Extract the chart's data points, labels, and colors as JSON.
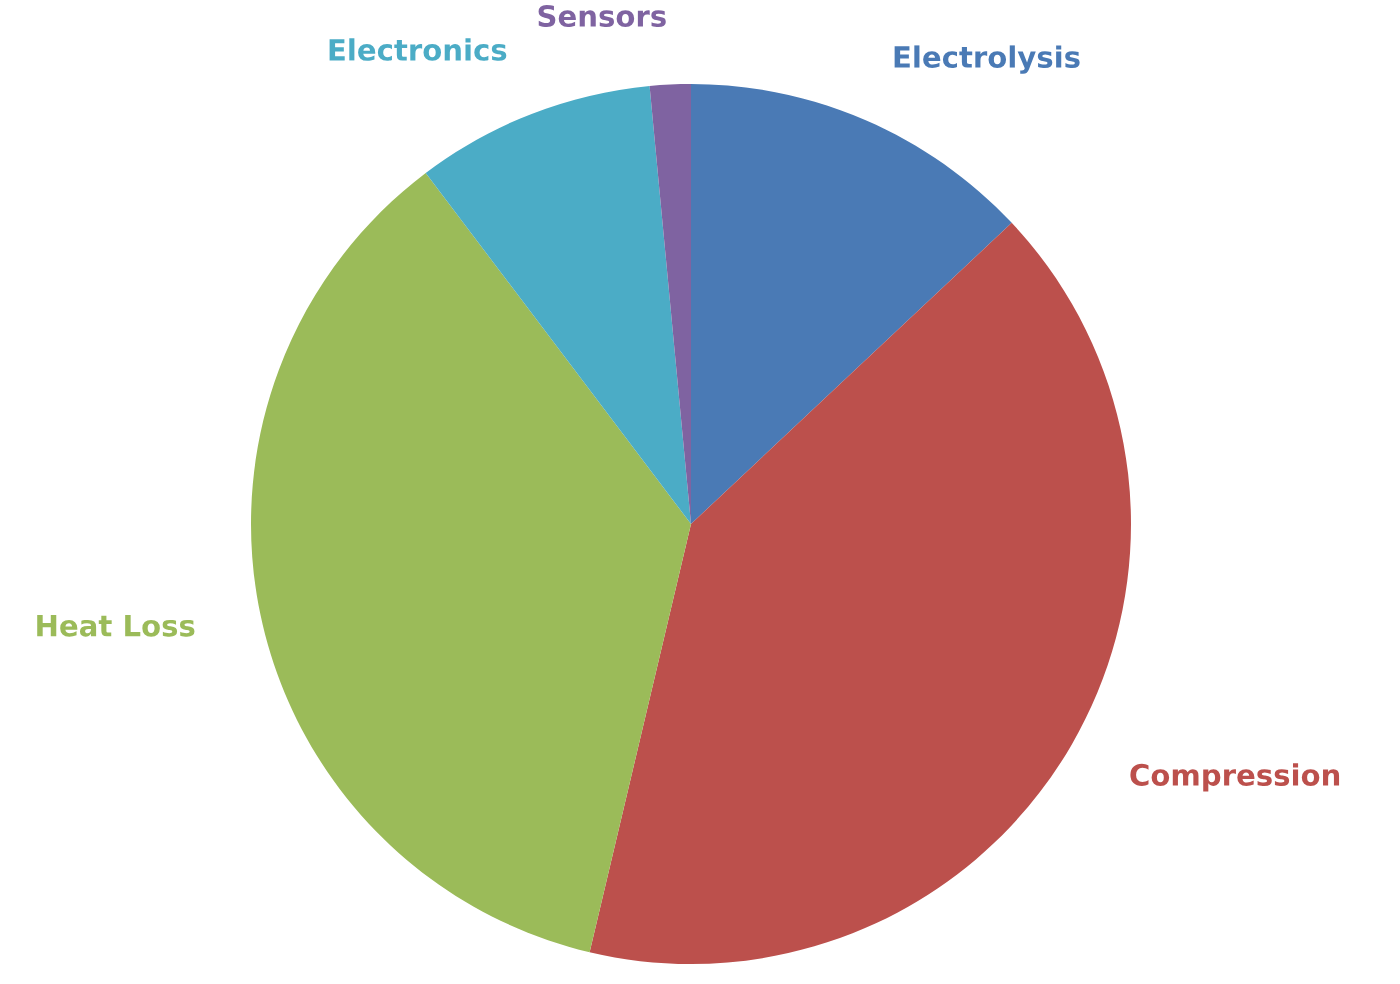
{
  "chart_data": {
    "type": "pie",
    "categories": [
      "Electrolysis",
      "Compression",
      "Heat Loss",
      "Electronics",
      "Sensors"
    ],
    "values": [
      13.0,
      40.7,
      36.0,
      8.8,
      1.5
    ],
    "colors": [
      "#4a7ab5",
      "#bc504c",
      "#9bbb59",
      "#4bacc6",
      "#7f63a1"
    ],
    "legend": false
  }
}
